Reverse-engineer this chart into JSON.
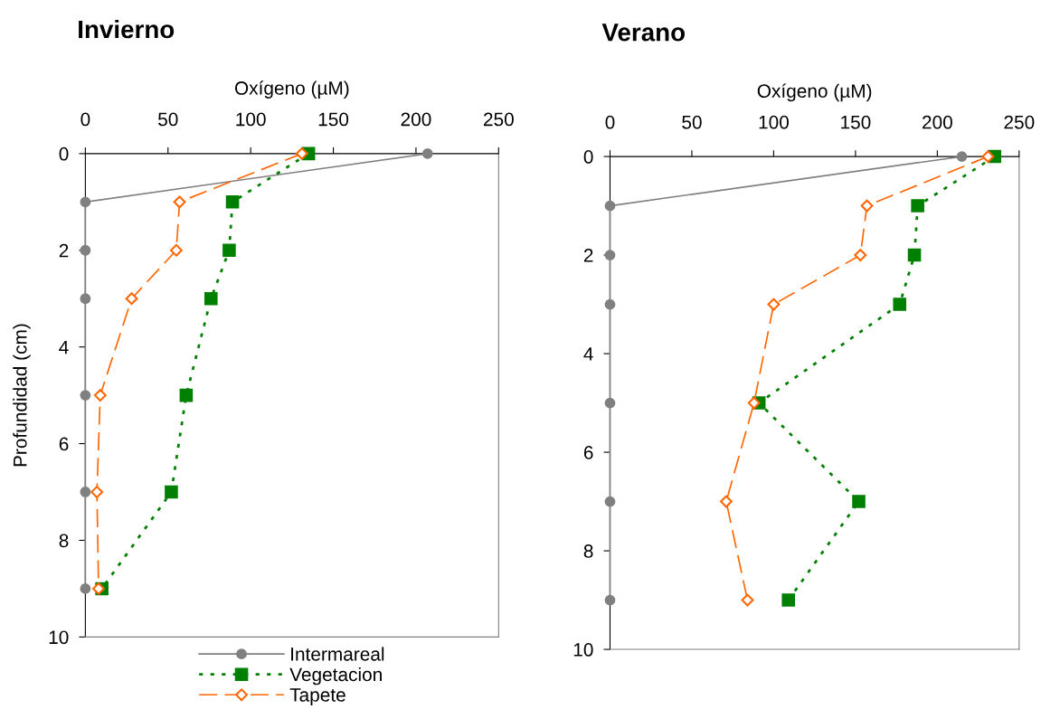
{
  "chart_data": [
    {
      "type": "line",
      "title": "Invierno",
      "xlabel": "Oxígeno (µM)",
      "ylabel": "Profundidad (cm)",
      "xlim": [
        0,
        250
      ],
      "xticks": [
        0,
        50,
        100,
        150,
        200,
        250
      ],
      "ylim": [
        10,
        0
      ],
      "yticks": [
        0,
        2,
        4,
        6,
        8,
        10
      ],
      "legend": "bottom",
      "grid": false,
      "series": [
        {
          "name": "Intermareal",
          "color": "#808080",
          "marker": "circle",
          "line_style": "solid",
          "x": [
            207,
            0,
            0,
            0,
            0,
            0,
            0
          ],
          "values": [
            0,
            1,
            2,
            3,
            5,
            7,
            9
          ]
        },
        {
          "name": "Vegetacion",
          "color": "#008000",
          "marker": "square",
          "line_style": "dotted",
          "x": [
            135,
            89,
            87,
            76,
            61,
            52,
            10
          ],
          "values": [
            0,
            1,
            2,
            3,
            5,
            7,
            9
          ]
        },
        {
          "name": "Tapete",
          "color": "#ff6600",
          "marker": "diamond",
          "line_style": "dashed",
          "x": [
            131,
            57,
            55,
            28,
            9,
            7,
            8
          ],
          "values": [
            0,
            1,
            2,
            3,
            5,
            7,
            9
          ]
        }
      ]
    },
    {
      "type": "line",
      "title": "Verano",
      "xlabel": "Oxígeno (µM)",
      "xlim": [
        0,
        250
      ],
      "xticks": [
        0,
        50,
        100,
        150,
        200,
        250
      ],
      "ylim": [
        10,
        0
      ],
      "yticks": [
        0,
        2,
        4,
        6,
        8,
        10
      ],
      "grid": false,
      "series": [
        {
          "color": "#808080",
          "marker": "circle",
          "line_style": "solid",
          "x": [
            215,
            0,
            0,
            0,
            0,
            0,
            0
          ],
          "values": [
            0,
            1,
            2,
            3,
            5,
            7,
            9
          ]
        },
        {
          "color": "#008000",
          "marker": "square",
          "line_style": "dotted",
          "x": [
            235,
            188,
            186,
            177,
            91,
            152,
            109
          ],
          "values": [
            0,
            1,
            2,
            3,
            5,
            7,
            9
          ]
        },
        {
          "color": "#ff6600",
          "marker": "diamond",
          "line_style": "dashed",
          "x": [
            231,
            157,
            153,
            100,
            88,
            71,
            84
          ],
          "values": [
            0,
            1,
            2,
            3,
            5,
            7,
            9
          ]
        }
      ]
    }
  ]
}
